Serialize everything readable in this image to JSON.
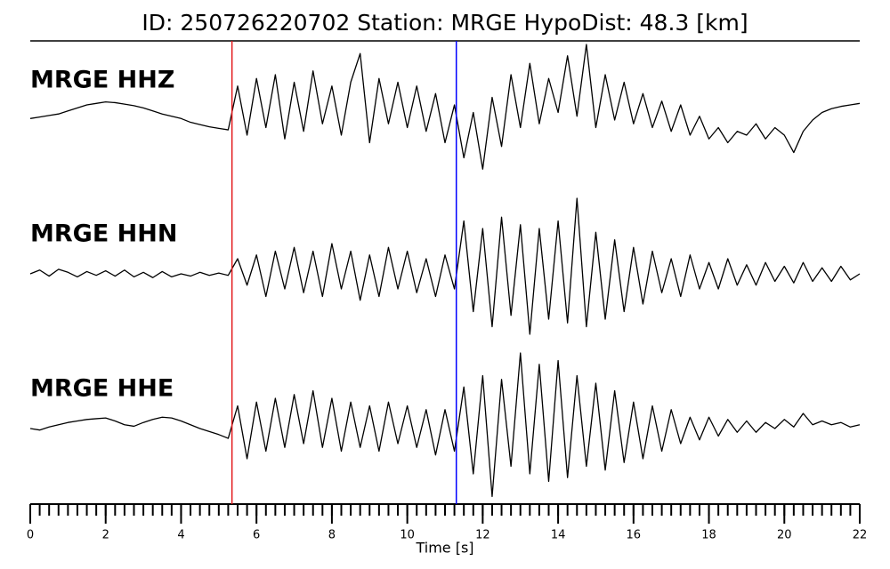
{
  "chart_data": {
    "type": "seismogram",
    "title": "ID: 250726220702   Station: MRGE   HypoDist:    48.3 [km]",
    "xlabel": "Time [s]",
    "xlim": [
      0,
      22
    ],
    "xticks": [
      0,
      2,
      4,
      6,
      8,
      10,
      12,
      14,
      16,
      18,
      20,
      22
    ],
    "xminor": 0.25,
    "ylim": [
      -1,
      1
    ],
    "label_color": "#4e9a06",
    "picks": [
      {
        "time": 5.35,
        "color": "#e41a1c"
      },
      {
        "time": 11.3,
        "color": "#0000ff"
      }
    ],
    "x": [
      0,
      0.25,
      0.5,
      0.75,
      1,
      1.25,
      1.5,
      1.75,
      2,
      2.25,
      2.5,
      2.75,
      3,
      3.25,
      3.5,
      3.75,
      4,
      4.25,
      4.5,
      4.75,
      5,
      5.25,
      5.5,
      5.75,
      6,
      6.25,
      6.5,
      6.75,
      7,
      7.25,
      7.5,
      7.75,
      8,
      8.25,
      8.5,
      8.75,
      9,
      9.25,
      9.5,
      9.75,
      10,
      10.25,
      10.5,
      10.75,
      11,
      11.25,
      11.5,
      11.75,
      12,
      12.25,
      12.5,
      12.75,
      13,
      13.25,
      13.5,
      13.75,
      14,
      14.25,
      14.5,
      14.75,
      15,
      15.25,
      15.5,
      15.75,
      16,
      16.25,
      16.5,
      16.75,
      17,
      17.25,
      17.5,
      17.75,
      18,
      18.25,
      18.5,
      18.75,
      19,
      19.25,
      19.5,
      19.75,
      20,
      20.25,
      20.5,
      20.75,
      21,
      21.25,
      21.5,
      21.75,
      22
    ],
    "series": [
      {
        "name": "MRGE HHZ",
        "color": "#000000",
        "values": [
          0.02,
          0.04,
          0.06,
          0.08,
          0.12,
          0.16,
          0.2,
          0.22,
          0.24,
          0.23,
          0.21,
          0.19,
          0.16,
          0.12,
          0.08,
          0.05,
          0.02,
          -0.03,
          -0.06,
          -0.09,
          -0.11,
          -0.13,
          0.45,
          -0.2,
          0.55,
          -0.1,
          0.6,
          -0.25,
          0.5,
          -0.15,
          0.65,
          -0.05,
          0.45,
          -0.2,
          0.5,
          0.88,
          -0.3,
          0.55,
          -0.05,
          0.5,
          -0.1,
          0.45,
          -0.15,
          0.35,
          -0.3,
          0.2,
          -0.5,
          0.1,
          -0.65,
          0.3,
          -0.35,
          0.6,
          -0.1,
          0.75,
          -0.05,
          0.55,
          0.1,
          0.85,
          0.05,
          1.0,
          -0.1,
          0.6,
          0.0,
          0.5,
          -0.05,
          0.35,
          -0.1,
          0.25,
          -0.15,
          0.2,
          -0.2,
          0.05,
          -0.25,
          -0.1,
          -0.3,
          -0.15,
          -0.2,
          -0.05,
          -0.25,
          -0.1,
          -0.2,
          -0.43,
          -0.15,
          0.0,
          0.1,
          0.15,
          0.18,
          0.2,
          0.22
        ]
      },
      {
        "name": "MRGE HHN",
        "color": "#000000",
        "values": [
          0.0,
          0.05,
          -0.03,
          0.06,
          0.02,
          -0.04,
          0.03,
          -0.02,
          0.04,
          -0.03,
          0.05,
          -0.04,
          0.02,
          -0.05,
          0.03,
          -0.04,
          0.0,
          -0.03,
          0.02,
          -0.02,
          0.01,
          -0.02,
          0.2,
          -0.15,
          0.25,
          -0.3,
          0.3,
          -0.2,
          0.35,
          -0.25,
          0.3,
          -0.3,
          0.4,
          -0.2,
          0.3,
          -0.35,
          0.25,
          -0.3,
          0.35,
          -0.2,
          0.3,
          -0.25,
          0.2,
          -0.3,
          0.25,
          -0.2,
          0.7,
          -0.5,
          0.6,
          -0.7,
          0.75,
          -0.55,
          0.65,
          -0.8,
          0.6,
          -0.6,
          0.7,
          -0.65,
          1.0,
          -0.7,
          0.55,
          -0.6,
          0.45,
          -0.5,
          0.35,
          -0.4,
          0.3,
          -0.25,
          0.2,
          -0.3,
          0.25,
          -0.2,
          0.15,
          -0.2,
          0.2,
          -0.15,
          0.12,
          -0.15,
          0.15,
          -0.1,
          0.1,
          -0.12,
          0.15,
          -0.1,
          0.08,
          -0.1,
          0.1,
          -0.08,
          0.0
        ]
      },
      {
        "name": "MRGE HHE",
        "color": "#000000",
        "values": [
          0.0,
          -0.02,
          0.02,
          0.05,
          0.08,
          0.1,
          0.12,
          0.13,
          0.14,
          0.1,
          0.05,
          0.03,
          0.08,
          0.12,
          0.15,
          0.14,
          0.1,
          0.05,
          0.0,
          -0.04,
          -0.08,
          -0.13,
          0.3,
          -0.4,
          0.35,
          -0.3,
          0.4,
          -0.25,
          0.45,
          -0.2,
          0.5,
          -0.25,
          0.4,
          -0.3,
          0.35,
          -0.25,
          0.3,
          -0.3,
          0.35,
          -0.2,
          0.3,
          -0.25,
          0.25,
          -0.35,
          0.25,
          -0.3,
          0.55,
          -0.6,
          0.7,
          -0.9,
          0.65,
          -0.5,
          1.0,
          -0.6,
          0.85,
          -0.7,
          0.9,
          -0.65,
          0.7,
          -0.5,
          0.6,
          -0.55,
          0.5,
          -0.45,
          0.35,
          -0.4,
          0.3,
          -0.3,
          0.25,
          -0.2,
          0.15,
          -0.15,
          0.15,
          -0.1,
          0.12,
          -0.05,
          0.1,
          -0.05,
          0.08,
          0.0,
          0.12,
          0.02,
          0.2,
          0.05,
          0.1,
          0.05,
          0.08,
          0.02,
          0.05
        ]
      }
    ]
  }
}
